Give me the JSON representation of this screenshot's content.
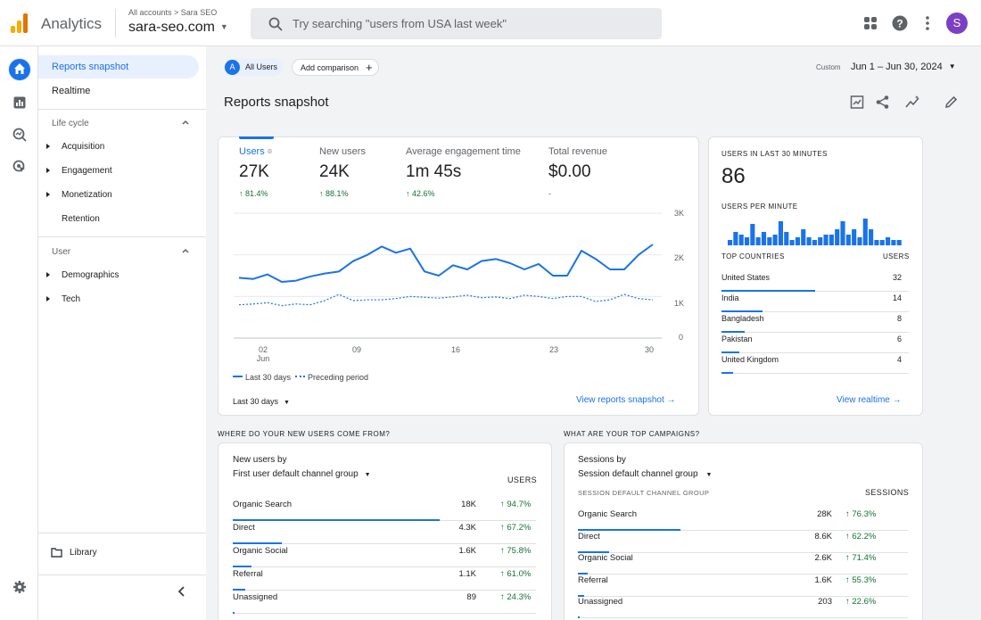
{
  "app": {
    "name": "Analytics",
    "breadcrumb": "All accounts > Sara SEO",
    "property": "sara-seo.com",
    "avatar_letter": "S"
  },
  "search": {
    "placeholder": "Try searching \"users from USA last week\""
  },
  "nav": {
    "reports_snapshot": "Reports snapshot",
    "realtime": "Realtime",
    "lifecycle_label": "Life cycle",
    "lifecycle_items": [
      "Acquisition",
      "Engagement",
      "Monetization",
      "Retention"
    ],
    "user_label": "User",
    "user_items": [
      "Demographics",
      "Tech"
    ],
    "library": "Library"
  },
  "toolbar": {
    "all_users_badge": "A",
    "all_users": "All Users",
    "add_comparison": "Add comparison",
    "date_prefix": "Custom",
    "date_range": "Jun 1 – Jun 30, 2024"
  },
  "page_title": "Reports snapshot",
  "metrics": [
    {
      "label": "Users",
      "value": "27K",
      "change": "↑ 81.4%"
    },
    {
      "label": "New users",
      "value": "24K",
      "change": "↑ 88.1%"
    },
    {
      "label": "Average engagement time",
      "value": "1m 45s",
      "change": "↑ 42.6%"
    },
    {
      "label": "Total revenue",
      "value": "$0.00",
      "change": "-"
    }
  ],
  "chart_data": {
    "type": "line",
    "x": [
      "Jun 1",
      "Jun 2",
      "Jun 3",
      "Jun 4",
      "Jun 5",
      "Jun 6",
      "Jun 7",
      "Jun 8",
      "Jun 9",
      "Jun 10",
      "Jun 11",
      "Jun 12",
      "Jun 13",
      "Jun 14",
      "Jun 15",
      "Jun 16",
      "Jun 17",
      "Jun 18",
      "Jun 19",
      "Jun 20",
      "Jun 21",
      "Jun 22",
      "Jun 23",
      "Jun 24",
      "Jun 25",
      "Jun 26",
      "Jun 27",
      "Jun 28",
      "Jun 29",
      "Jun 30"
    ],
    "x_tick_labels": [
      "02\nJun",
      "09",
      "16",
      "23",
      "30"
    ],
    "y_ticks": [
      "3K",
      "2K",
      "1K",
      "0"
    ],
    "ylim": [
      0,
      3000
    ],
    "series": [
      {
        "name": "Last 30 days",
        "style": "solid",
        "color": "#1a73e8",
        "values": [
          1450,
          1420,
          1530,
          1350,
          1380,
          1480,
          1550,
          1600,
          1850,
          2000,
          2200,
          2050,
          2150,
          1600,
          1500,
          1750,
          1650,
          1850,
          1900,
          1800,
          1650,
          1780,
          1500,
          1500,
          2100,
          1900,
          1650,
          1650,
          2000,
          2250
        ]
      },
      {
        "name": "Preceding period",
        "style": "dotted",
        "color": "#1a73e8",
        "values": [
          800,
          820,
          850,
          780,
          820,
          800,
          900,
          1050,
          900,
          920,
          920,
          950,
          1000,
          980,
          960,
          990,
          1030,
          970,
          990,
          950,
          1030,
          1000,
          950,
          1000,
          1000,
          880,
          920,
          1050,
          950,
          920
        ]
      }
    ],
    "range_label": "Last 30 days"
  },
  "links": {
    "view_snapshot": "View reports snapshot  →",
    "view_realtime": "View realtime  →"
  },
  "realtime": {
    "title": "USERS IN LAST 30 MINUTES",
    "value": "86",
    "per_minute_label": "USERS PER MINUTE",
    "per_minute": [
      2,
      5,
      4,
      3,
      8,
      3,
      5,
      3,
      4,
      9,
      5,
      2,
      3,
      6,
      3,
      2,
      3,
      4,
      4,
      6,
      9,
      4,
      6,
      3,
      10,
      6,
      2,
      2,
      3,
      2,
      2
    ],
    "countries_header": "TOP COUNTRIES",
    "users_header": "USERS",
    "countries": [
      {
        "name": "United States",
        "users": "32",
        "value": 32
      },
      {
        "name": "India",
        "users": "14",
        "value": 14
      },
      {
        "name": "Bangladesh",
        "users": "8",
        "value": 8
      },
      {
        "name": "Pakistan",
        "users": "6",
        "value": 6
      },
      {
        "name": "United Kingdom",
        "users": "4",
        "value": 4
      }
    ]
  },
  "new_users_section": {
    "heading": "WHERE DO YOUR NEW USERS COME FROM?",
    "title": "New users  by",
    "dimension": "First user default channel group",
    "col_header": "USERS",
    "rows": [
      {
        "name": "Organic Search",
        "value": "18K",
        "num": 18,
        "change": "↑ 94.7%"
      },
      {
        "name": "Direct",
        "value": "4.3K",
        "num": 4.3,
        "change": "↑ 67.2%"
      },
      {
        "name": "Organic Social",
        "value": "1.6K",
        "num": 1.6,
        "change": "↑ 75.8%"
      },
      {
        "name": "Referral",
        "value": "1.1K",
        "num": 1.1,
        "change": "↑ 61.0%"
      },
      {
        "name": "Unassigned",
        "value": "89",
        "num": 0.089,
        "change": "↑ 24.3%"
      }
    ]
  },
  "campaigns_section": {
    "heading": "WHAT ARE YOUR TOP CAMPAIGNS?",
    "title": "Sessions  by",
    "dimension": "Session default channel group",
    "dim_header": "SESSION DEFAULT CHANNEL GROUP",
    "col_header": "SESSIONS",
    "rows": [
      {
        "name": "Organic Search",
        "value": "28K",
        "num": 28,
        "change": "↑ 76.3%"
      },
      {
        "name": "Direct",
        "value": "8.6K",
        "num": 8.6,
        "change": "↑ 62.2%"
      },
      {
        "name": "Organic Social",
        "value": "2.6K",
        "num": 2.6,
        "change": "↑ 71.4%"
      },
      {
        "name": "Referral",
        "value": "1.6K",
        "num": 1.6,
        "change": "↑ 55.3%"
      },
      {
        "name": "Unassigned",
        "value": "203",
        "num": 0.203,
        "change": "↑ 22.6%"
      }
    ]
  },
  "colors": {
    "accent": "#1a73e8",
    "positive": "#137333",
    "avatar": "#7b3fc4"
  }
}
